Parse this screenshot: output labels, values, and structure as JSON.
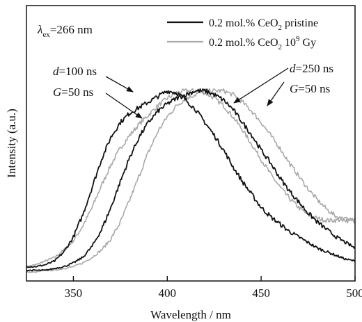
{
  "chart_data": {
    "type": "line",
    "title": "",
    "xlabel": "Wavelength / nm",
    "ylabel": "Intensity (a.u.)",
    "xlim": [
      325,
      500
    ],
    "ylim": [
      0,
      1.0
    ],
    "xticks": [
      350,
      400,
      450,
      500
    ],
    "ytick_labels": false,
    "excitation_label": {
      "symbol": "λ",
      "sub": "ex",
      "text": "=266 nm"
    },
    "legend": [
      {
        "text": "0.2 mol.% CeO",
        "sub": "2",
        "rest": " pristine",
        "color": "#111111"
      },
      {
        "text": "0.2 mol.% CeO",
        "sub": "2",
        "rest": " 10",
        "sup": "9",
        "tail": " Gy",
        "color": "#a8a8a8"
      }
    ],
    "annotations": [
      {
        "d_label": "d",
        "d_value": "=100 ns",
        "g_label": "G",
        "g_value": "=50 ns"
      },
      {
        "d_label": "d",
        "d_value": "=250 ns",
        "g_label": "G",
        "g_value": "=50 ns"
      }
    ],
    "series": [
      {
        "name": "0.2 mol.% CeO2 pristine, d=100 ns",
        "color": "#111111",
        "x": [
          325,
          330,
          335,
          340,
          345,
          350,
          355,
          360,
          365,
          370,
          375,
          380,
          385,
          390,
          395,
          400,
          405,
          410,
          415,
          420,
          425,
          430,
          435,
          440,
          445,
          450,
          455,
          460,
          465,
          470,
          475,
          480,
          485,
          490,
          495,
          500
        ],
        "y": [
          0.04,
          0.04,
          0.05,
          0.07,
          0.12,
          0.2,
          0.32,
          0.47,
          0.62,
          0.74,
          0.82,
          0.87,
          0.9,
          0.93,
          0.96,
          0.99,
          0.98,
          0.94,
          0.89,
          0.82,
          0.75,
          0.67,
          0.58,
          0.5,
          0.43,
          0.36,
          0.31,
          0.27,
          0.23,
          0.2,
          0.17,
          0.14,
          0.12,
          0.1,
          0.08,
          0.07
        ]
      },
      {
        "name": "0.2 mol.% CeO2 10^9 Gy, d=100 ns",
        "color": "#a8a8a8",
        "x": [
          325,
          330,
          335,
          340,
          345,
          350,
          355,
          360,
          365,
          370,
          375,
          380,
          385,
          390,
          395,
          400,
          405,
          410,
          415,
          420,
          425,
          430,
          435,
          440,
          445,
          450,
          455,
          460,
          465,
          470,
          475,
          480,
          485,
          490,
          495,
          500
        ],
        "y": [
          0.04,
          0.05,
          0.07,
          0.09,
          0.13,
          0.18,
          0.26,
          0.36,
          0.48,
          0.59,
          0.68,
          0.75,
          0.81,
          0.86,
          0.91,
          0.95,
          0.98,
          0.99,
          0.99,
          0.98,
          0.95,
          0.91,
          0.85,
          0.78,
          0.7,
          0.62,
          0.54,
          0.47,
          0.41,
          0.36,
          0.32,
          0.3,
          0.29,
          0.29,
          0.3,
          0.3
        ]
      },
      {
        "name": "0.2 mol.% CeO2 pristine, d=250 ns",
        "color": "#111111",
        "x": [
          325,
          330,
          335,
          340,
          345,
          350,
          355,
          360,
          365,
          370,
          375,
          380,
          385,
          390,
          395,
          400,
          405,
          410,
          415,
          420,
          425,
          430,
          435,
          440,
          445,
          450,
          455,
          460,
          465,
          470,
          475,
          480,
          485,
          490,
          495,
          500
        ],
        "y": [
          0.02,
          0.02,
          0.02,
          0.03,
          0.04,
          0.06,
          0.09,
          0.15,
          0.24,
          0.36,
          0.5,
          0.63,
          0.74,
          0.82,
          0.88,
          0.92,
          0.95,
          0.97,
          0.99,
          0.99,
          0.97,
          0.94,
          0.89,
          0.82,
          0.75,
          0.67,
          0.6,
          0.52,
          0.45,
          0.39,
          0.33,
          0.28,
          0.24,
          0.2,
          0.17,
          0.14
        ]
      },
      {
        "name": "0.2 mol.% CeO2 10^9 Gy, d=250 ns",
        "color": "#a8a8a8",
        "x": [
          325,
          330,
          335,
          340,
          345,
          350,
          355,
          360,
          365,
          370,
          375,
          380,
          385,
          390,
          395,
          400,
          405,
          410,
          415,
          420,
          425,
          430,
          435,
          440,
          445,
          450,
          455,
          460,
          465,
          470,
          475,
          480,
          485,
          490,
          495,
          500
        ],
        "y": [
          0.01,
          0.01,
          0.02,
          0.02,
          0.03,
          0.04,
          0.06,
          0.09,
          0.13,
          0.19,
          0.28,
          0.4,
          0.53,
          0.66,
          0.77,
          0.85,
          0.91,
          0.95,
          0.97,
          0.99,
          0.99,
          0.99,
          0.97,
          0.93,
          0.88,
          0.82,
          0.75,
          0.68,
          0.6,
          0.53,
          0.46,
          0.4,
          0.35,
          0.31,
          0.29,
          0.28
        ]
      }
    ]
  }
}
